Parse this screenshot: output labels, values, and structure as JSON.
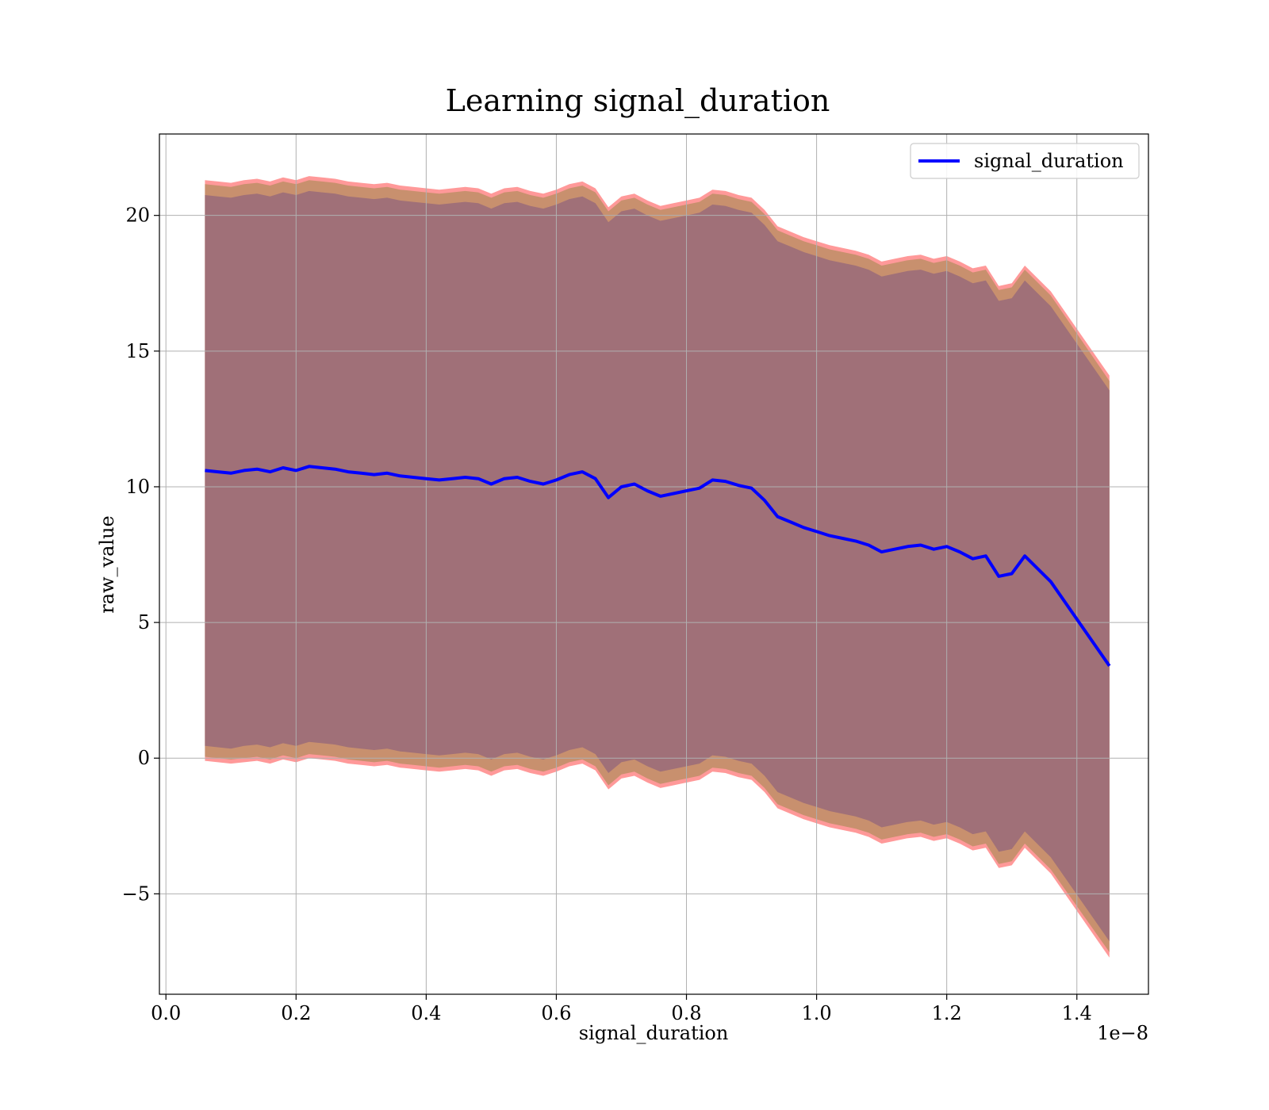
{
  "chart_data": {
    "type": "line",
    "title": "Learning signal_duration",
    "xlabel": "signal_duration",
    "ylabel": "raw_value",
    "x_offset_label": "1e−8",
    "xlim": [
      -0.01,
      1.51
    ],
    "ylim": [
      -8.7,
      23.0
    ],
    "grid": true,
    "legend": {
      "placement": "top-right",
      "entries": [
        "signal_duration"
      ]
    },
    "x_ticks": [
      {
        "value": 0.0,
        "label": "0.0"
      },
      {
        "value": 0.2,
        "label": "0.2"
      },
      {
        "value": 0.4,
        "label": "0.4"
      },
      {
        "value": 0.6,
        "label": "0.6"
      },
      {
        "value": 0.8,
        "label": "0.8"
      },
      {
        "value": 1.0,
        "label": "1.0"
      },
      {
        "value": 1.2,
        "label": "1.2"
      },
      {
        "value": 1.4,
        "label": "1.4"
      }
    ],
    "y_ticks": [
      {
        "value": -5,
        "label": "−5"
      },
      {
        "value": 0,
        "label": "0"
      },
      {
        "value": 5,
        "label": "5"
      },
      {
        "value": 10,
        "label": "10"
      },
      {
        "value": 15,
        "label": "15"
      },
      {
        "value": 20,
        "label": "20"
      }
    ],
    "x": [
      0.06,
      0.08,
      0.1,
      0.12,
      0.14,
      0.16,
      0.18,
      0.2,
      0.22,
      0.24,
      0.26,
      0.28,
      0.3,
      0.32,
      0.34,
      0.36,
      0.38,
      0.4,
      0.42,
      0.44,
      0.46,
      0.48,
      0.5,
      0.52,
      0.54,
      0.56,
      0.58,
      0.6,
      0.62,
      0.64,
      0.66,
      0.68,
      0.7,
      0.72,
      0.74,
      0.76,
      0.78,
      0.8,
      0.82,
      0.84,
      0.86,
      0.88,
      0.9,
      0.92,
      0.94,
      0.96,
      0.98,
      1.0,
      1.02,
      1.04,
      1.06,
      1.08,
      1.1,
      1.12,
      1.14,
      1.16,
      1.18,
      1.2,
      1.22,
      1.24,
      1.26,
      1.28,
      1.3,
      1.32,
      1.36,
      1.45
    ],
    "series": [
      {
        "name": "signal_duration",
        "color": "#0000ff",
        "values": [
          10.6,
          10.55,
          10.5,
          10.6,
          10.65,
          10.55,
          10.7,
          10.6,
          10.75,
          10.7,
          10.65,
          10.55,
          10.5,
          10.45,
          10.5,
          10.4,
          10.35,
          10.3,
          10.25,
          10.3,
          10.35,
          10.3,
          10.1,
          10.3,
          10.35,
          10.2,
          10.1,
          10.25,
          10.45,
          10.55,
          10.3,
          9.6,
          10.0,
          10.1,
          9.85,
          9.65,
          9.75,
          9.85,
          9.95,
          10.25,
          10.2,
          10.05,
          9.95,
          9.5,
          8.9,
          8.7,
          8.5,
          8.35,
          8.2,
          8.1,
          8.0,
          7.85,
          7.6,
          7.7,
          7.8,
          7.85,
          7.7,
          7.8,
          7.6,
          7.35,
          7.45,
          6.7,
          6.8,
          7.45,
          6.5,
          3.4
        ]
      }
    ],
    "bands": [
      {
        "name": "outer",
        "color": "#ff9999",
        "lower": [
          -0.1,
          -0.15,
          -0.2,
          -0.15,
          -0.1,
          -0.2,
          -0.05,
          -0.15,
          0.0,
          -0.05,
          -0.1,
          -0.2,
          -0.25,
          -0.3,
          -0.25,
          -0.35,
          -0.4,
          -0.45,
          -0.5,
          -0.45,
          -0.4,
          -0.45,
          -0.65,
          -0.45,
          -0.4,
          -0.55,
          -0.65,
          -0.5,
          -0.3,
          -0.2,
          -0.45,
          -1.15,
          -0.75,
          -0.65,
          -0.9,
          -1.1,
          -1.0,
          -0.9,
          -0.8,
          -0.5,
          -0.55,
          -0.7,
          -0.8,
          -1.25,
          -1.85,
          -2.05,
          -2.25,
          -2.4,
          -2.55,
          -2.65,
          -2.75,
          -2.9,
          -3.15,
          -3.05,
          -2.95,
          -2.9,
          -3.05,
          -2.95,
          -3.15,
          -3.4,
          -3.3,
          -4.05,
          -3.95,
          -3.3,
          -4.25,
          -7.35
        ],
        "upper": [
          21.3,
          21.25,
          21.2,
          21.3,
          21.35,
          21.25,
          21.4,
          21.3,
          21.45,
          21.4,
          21.35,
          21.25,
          21.2,
          21.15,
          21.2,
          21.1,
          21.05,
          21.0,
          20.95,
          21.0,
          21.05,
          21.0,
          20.8,
          21.0,
          21.05,
          20.9,
          20.8,
          20.95,
          21.15,
          21.25,
          21.0,
          20.3,
          20.7,
          20.8,
          20.55,
          20.35,
          20.45,
          20.55,
          20.65,
          20.95,
          20.9,
          20.75,
          20.65,
          20.2,
          19.6,
          19.4,
          19.2,
          19.05,
          18.9,
          18.8,
          18.7,
          18.55,
          18.3,
          18.4,
          18.5,
          18.55,
          18.4,
          18.5,
          18.3,
          18.05,
          18.15,
          17.4,
          17.5,
          18.15,
          17.2,
          14.1
        ]
      },
      {
        "name": "middle",
        "color": "#c8906e",
        "lower": [
          0.05,
          0.0,
          -0.05,
          0.0,
          0.05,
          -0.05,
          0.1,
          0.0,
          0.15,
          0.1,
          0.05,
          -0.05,
          -0.1,
          -0.15,
          -0.1,
          -0.2,
          -0.25,
          -0.3,
          -0.35,
          -0.3,
          -0.25,
          -0.3,
          -0.5,
          -0.3,
          -0.25,
          -0.4,
          -0.5,
          -0.35,
          -0.15,
          -0.05,
          -0.3,
          -1.0,
          -0.6,
          -0.5,
          -0.75,
          -0.95,
          -0.85,
          -0.75,
          -0.65,
          -0.35,
          -0.4,
          -0.55,
          -0.65,
          -1.1,
          -1.7,
          -1.9,
          -2.1,
          -2.25,
          -2.4,
          -2.5,
          -2.6,
          -2.75,
          -3.0,
          -2.9,
          -2.8,
          -2.75,
          -2.9,
          -2.8,
          -3.0,
          -3.25,
          -3.15,
          -3.9,
          -3.8,
          -3.15,
          -4.1,
          -7.15
        ],
        "upper": [
          21.15,
          21.1,
          21.05,
          21.15,
          21.2,
          21.1,
          21.25,
          21.15,
          21.3,
          21.25,
          21.2,
          21.1,
          21.05,
          21.0,
          21.05,
          20.95,
          20.9,
          20.85,
          20.8,
          20.85,
          20.9,
          20.85,
          20.65,
          20.85,
          20.9,
          20.75,
          20.65,
          20.8,
          21.0,
          21.1,
          20.85,
          20.15,
          20.55,
          20.65,
          20.4,
          20.2,
          20.3,
          20.4,
          20.5,
          20.8,
          20.75,
          20.6,
          20.5,
          20.05,
          19.45,
          19.25,
          19.05,
          18.9,
          18.75,
          18.65,
          18.55,
          18.4,
          18.15,
          18.25,
          18.35,
          18.4,
          18.25,
          18.35,
          18.15,
          17.9,
          18.0,
          17.25,
          17.35,
          18.0,
          17.05,
          13.9
        ]
      },
      {
        "name": "inner",
        "color": "#a07078",
        "lower": [
          0.45,
          0.4,
          0.35,
          0.45,
          0.5,
          0.4,
          0.55,
          0.45,
          0.6,
          0.55,
          0.5,
          0.4,
          0.35,
          0.3,
          0.35,
          0.25,
          0.2,
          0.15,
          0.1,
          0.15,
          0.2,
          0.15,
          -0.05,
          0.15,
          0.2,
          0.05,
          -0.05,
          0.1,
          0.3,
          0.4,
          0.15,
          -0.55,
          -0.15,
          -0.05,
          -0.3,
          -0.5,
          -0.4,
          -0.3,
          -0.2,
          0.1,
          0.05,
          -0.1,
          -0.2,
          -0.65,
          -1.25,
          -1.45,
          -1.65,
          -1.8,
          -1.95,
          -2.05,
          -2.15,
          -2.3,
          -2.55,
          -2.45,
          -2.35,
          -2.3,
          -2.45,
          -2.35,
          -2.55,
          -2.8,
          -2.7,
          -3.45,
          -3.35,
          -2.7,
          -3.65,
          -6.75
        ],
        "upper": [
          20.75,
          20.7,
          20.65,
          20.75,
          20.8,
          20.7,
          20.85,
          20.75,
          20.9,
          20.85,
          20.8,
          20.7,
          20.65,
          20.6,
          20.65,
          20.55,
          20.5,
          20.45,
          20.4,
          20.45,
          20.5,
          20.45,
          20.25,
          20.45,
          20.5,
          20.35,
          20.25,
          20.4,
          20.6,
          20.7,
          20.45,
          19.75,
          20.15,
          20.25,
          20.0,
          19.8,
          19.9,
          20.0,
          20.1,
          20.4,
          20.35,
          20.2,
          20.1,
          19.65,
          19.05,
          18.85,
          18.65,
          18.5,
          18.35,
          18.25,
          18.15,
          18.0,
          17.75,
          17.85,
          17.95,
          18.0,
          17.85,
          17.95,
          17.75,
          17.5,
          17.6,
          16.85,
          16.95,
          17.6,
          16.65,
          13.55
        ]
      }
    ]
  }
}
